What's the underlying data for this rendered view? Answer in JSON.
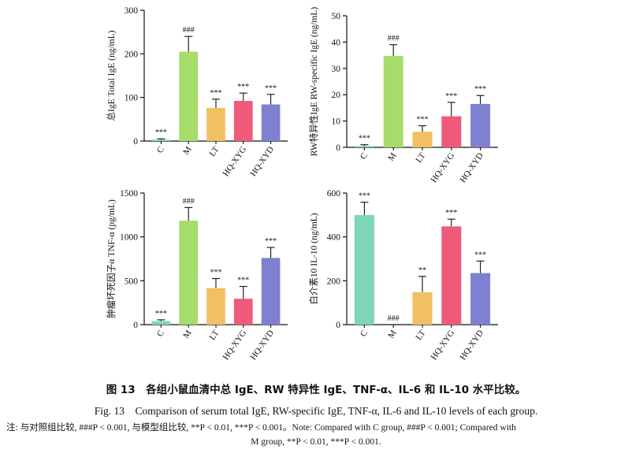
{
  "colors": {
    "C": "#7ed6b6",
    "M": "#a6dc6a",
    "LT": "#f0c062",
    "HQ-XYG": "#ef5a79",
    "HQ-XYD": "#7f80cf",
    "axis": "#111111"
  },
  "chart_data": [
    {
      "type": "bar",
      "ylabel": "总IgE Total IgE (ng/mL)",
      "categories": [
        "C",
        "M",
        "LT",
        "HQ-XYG",
        "HQ-XYD"
      ],
      "values": [
        3,
        205,
        76,
        92,
        84
      ],
      "errors": [
        2,
        35,
        20,
        18,
        23
      ],
      "annotations": [
        "***",
        "###",
        "***",
        "***",
        "***"
      ],
      "ylim": [
        0,
        300
      ],
      "yticks": [
        0,
        100,
        200,
        300
      ]
    },
    {
      "type": "bar",
      "ylabel": "RW特异性IgE RW-specific IgE (ng/mL)",
      "categories": [
        "C",
        "M",
        "LT",
        "HQ-XYG",
        "HQ-XYD"
      ],
      "values": [
        0.5,
        34.7,
        5.9,
        11.8,
        16.5
      ],
      "errors": [
        0.5,
        4.3,
        2.3,
        5.3,
        3.2
      ],
      "annotations": [
        "***",
        "###",
        "***",
        "***",
        "***"
      ],
      "ylim": [
        0,
        50
      ],
      "yticks": [
        0,
        10,
        20,
        30,
        40,
        50
      ]
    },
    {
      "type": "bar",
      "ylabel": "肿瘤坏死因子α TNF-α (pg/mL)",
      "categories": [
        "C",
        "M",
        "LT",
        "HQ-XYG",
        "HQ-XYD"
      ],
      "values": [
        40,
        1185,
        415,
        295,
        760
      ],
      "errors": [
        15,
        150,
        110,
        140,
        120
      ],
      "annotations": [
        "***",
        "###",
        "***",
        "***",
        "***"
      ],
      "ylim": [
        0,
        1500
      ],
      "yticks": [
        0,
        500,
        1000,
        1500
      ]
    },
    {
      "type": "bar",
      "ylabel": "白介素10 IL-10 (ng/mL)",
      "categories": [
        "C",
        "M",
        "LT",
        "HQ-XYG",
        "HQ-XYD"
      ],
      "values": [
        500,
        0,
        148,
        448,
        235
      ],
      "errors": [
        58,
        0,
        72,
        33,
        55
      ],
      "annotations": [
        "***",
        "###",
        "**",
        "***",
        "***"
      ],
      "ylim": [
        0,
        600
      ],
      "yticks": [
        0,
        200,
        400,
        600
      ]
    }
  ],
  "caption": {
    "cn": "图 13　各组小鼠血清中总 IgE、RW 特异性 IgE、TNF-α、IL-6 和 IL-10 水平比较。",
    "en": "Fig. 13　Comparison of serum total IgE, RW-specific IgE, TNF-α, IL-6 and IL-10 levels of each group.",
    "note_line1": "注: 与对照组比较, ###P < 0.001, 与模型组比较, **P < 0.01, ***P < 0.001。Note: Compared with C group, ###P < 0.001; Compared with",
    "note_line2": "M group, **P < 0.01, ***P < 0.001."
  }
}
